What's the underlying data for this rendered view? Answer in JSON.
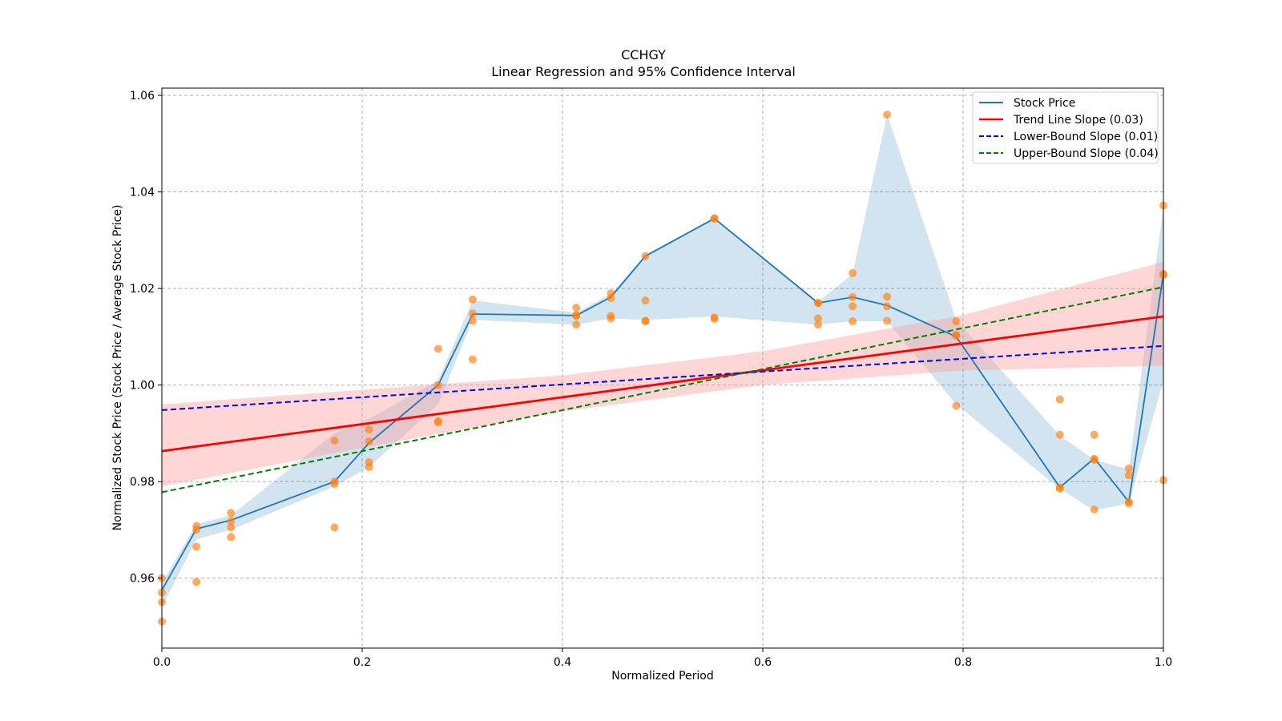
{
  "chart_data": {
    "type": "line",
    "title": "CCHGY",
    "subtitle": "Linear Regression and 95% Confidence Interval",
    "xlabel": "Normalized Period",
    "ylabel": "Normalized Stock Price (Stock Price / Average Stock Price)",
    "xlim": [
      0.0,
      1.0
    ],
    "ylim": [
      0.9455,
      1.0615
    ],
    "xticks": [
      0.0,
      0.2,
      0.4,
      0.6,
      0.8,
      1.0
    ],
    "xtick_labels": [
      "0.0",
      "0.2",
      "0.4",
      "0.6",
      "0.8",
      "1.0"
    ],
    "yticks": [
      0.96,
      0.98,
      1.0,
      1.02,
      1.04,
      1.06
    ],
    "ytick_labels": [
      "0.96",
      "0.98",
      "1.00",
      "1.02",
      "1.04",
      "1.06"
    ],
    "grid": true,
    "legend_position": "top-right",
    "colors": {
      "stock": "#1f77b4",
      "stock_band": "#1f77b4",
      "scatter": "#ff7f0e",
      "trend": "#ff0000",
      "trend_band": "#ff9999",
      "lower": "#0000ff",
      "upper": "#008000"
    },
    "legend": [
      {
        "label": "Stock Price",
        "color": "#1f77b4",
        "style": "solid"
      },
      {
        "label": "Trend Line Slope (0.03)",
        "color": "#ff0000",
        "style": "solid"
      },
      {
        "label": "Lower-Bound Slope (0.01)",
        "color": "#0000ff",
        "style": "dashed"
      },
      {
        "label": "Upper-Bound Slope (0.04)",
        "color": "#008000",
        "style": "dashed"
      }
    ],
    "stock_line": {
      "x": [
        0.0,
        0.0345,
        0.069,
        0.1724,
        0.2069,
        0.2759,
        0.3103,
        0.4138,
        0.4483,
        0.4828,
        0.5517,
        0.6552,
        0.6897,
        0.7241,
        0.7931,
        0.8966,
        0.931,
        0.9655,
        1.0
      ],
      "y": [
        0.9575,
        0.9702,
        0.972,
        0.98,
        0.988,
        1.0,
        1.0147,
        1.0144,
        1.0182,
        1.0267,
        1.0345,
        1.017,
        1.0182,
        1.0165,
        1.01,
        0.9788,
        0.9848,
        0.9758,
        1.023
      ]
    },
    "stock_band": {
      "x": [
        0.0,
        0.0345,
        0.069,
        0.1724,
        0.2069,
        0.2759,
        0.3103,
        0.4138,
        0.4483,
        0.4828,
        0.5517,
        0.6552,
        0.6897,
        0.7241,
        0.7931,
        0.8966,
        0.931,
        0.9655,
        1.0
      ],
      "lower": [
        0.954,
        0.968,
        0.97,
        0.979,
        0.983,
        0.996,
        1.0135,
        1.0125,
        1.0138,
        1.0135,
        1.0142,
        1.0125,
        1.0132,
        1.0132,
        0.996,
        0.9785,
        0.974,
        0.9755,
        1.001
      ],
      "upper": [
        0.959,
        0.9712,
        0.973,
        0.99,
        0.993,
        1.001,
        1.0175,
        1.015,
        1.0188,
        1.027,
        1.0345,
        1.0172,
        1.023,
        1.056,
        1.0135,
        0.9895,
        0.9845,
        0.9825,
        1.037
      ]
    },
    "scatter": {
      "x": [
        0.0,
        0.0,
        0.0,
        0.0,
        0.0345,
        0.0345,
        0.0345,
        0.0345,
        0.069,
        0.069,
        0.069,
        0.069,
        0.1724,
        0.1724,
        0.1724,
        0.1724,
        0.2069,
        0.2069,
        0.2069,
        0.2069,
        0.2759,
        0.2759,
        0.2759,
        0.2759,
        0.3103,
        0.3103,
        0.3103,
        0.3103,
        0.4138,
        0.4138,
        0.4138,
        0.4138,
        0.4483,
        0.4483,
        0.4483,
        0.4483,
        0.4828,
        0.4828,
        0.4828,
        0.4828,
        0.5517,
        0.5517,
        0.5517,
        0.5517,
        0.6552,
        0.6552,
        0.6552,
        0.6552,
        0.6897,
        0.6897,
        0.6897,
        0.6897,
        0.7241,
        0.7241,
        0.7241,
        0.7241,
        0.7931,
        0.7931,
        0.7931,
        0.7931,
        0.8966,
        0.8966,
        0.8966,
        0.8966,
        0.931,
        0.931,
        0.931,
        0.931,
        0.9655,
        0.9655,
        0.9655,
        0.9655,
        1.0,
        1.0,
        1.0,
        1.0
      ],
      "y": [
        0.96,
        0.957,
        0.955,
        0.951,
        0.9708,
        0.97,
        0.9665,
        0.9592,
        0.9735,
        0.9705,
        0.9718,
        0.9685,
        0.9885,
        0.98,
        0.9795,
        0.9705,
        0.9908,
        0.9883,
        0.984,
        0.983,
        1.0075,
        1.0,
        0.9925,
        0.9923,
        1.0177,
        1.0148,
        1.0133,
        1.0053,
        1.016,
        1.0145,
        1.0125,
        1.0143,
        1.019,
        1.018,
        1.0143,
        1.0138,
        1.0267,
        1.0175,
        1.0132,
        1.0133,
        1.0345,
        1.014,
        1.0137,
        1.0345,
        1.017,
        1.0138,
        1.0125,
        1.017,
        1.0232,
        1.0182,
        1.0163,
        1.0132,
        1.056,
        1.0183,
        1.0163,
        1.0133,
        1.0132,
        1.0103,
        1.0103,
        0.9957,
        0.997,
        0.9897,
        0.9788,
        0.9785,
        0.9897,
        0.9847,
        0.9845,
        0.9742,
        0.9827,
        0.9813,
        0.9758,
        0.9755,
        1.0372,
        1.0228,
        1.023,
        0.9803
      ]
    },
    "trend_line": {
      "x": [
        0.0,
        1.0
      ],
      "y": [
        0.9863,
        1.0142
      ]
    },
    "trend_band": {
      "x": [
        0.0,
        0.2,
        0.4,
        0.6,
        0.8,
        1.0
      ],
      "lower": [
        0.979,
        0.987,
        0.9945,
        1.0,
        1.003,
        1.004
      ],
      "upper": [
        0.996,
        0.999,
        1.002,
        1.007,
        1.0145,
        1.0255
      ]
    },
    "lower_bound_line": {
      "x": [
        0.0,
        1.0
      ],
      "y": [
        0.9948,
        1.0081
      ]
    },
    "upper_bound_line": {
      "x": [
        0.0,
        1.0
      ],
      "y": [
        0.9778,
        1.0203
      ]
    }
  }
}
